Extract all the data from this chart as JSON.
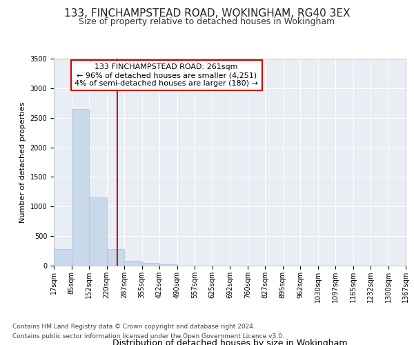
{
  "title1": "133, FINCHAMPSTEAD ROAD, WOKINGHAM, RG40 3EX",
  "title2": "Size of property relative to detached houses in Wokingham",
  "xlabel": "Distribution of detached houses by size in Wokingham",
  "ylabel": "Number of detached properties",
  "footer1": "Contains HM Land Registry data © Crown copyright and database right 2024.",
  "footer2": "Contains public sector information licensed under the Open Government Licence v3.0.",
  "annotation_line1": "133 FINCHAMPSTEAD ROAD: 261sqm",
  "annotation_line2": "← 96% of detached houses are smaller (4,251)",
  "annotation_line3": "4% of semi-detached houses are larger (180) →",
  "property_size": 261,
  "bar_color": "#c8d9ea",
  "bar_edge_color": "#a8c4d8",
  "ref_line_color": "#cc0000",
  "annotation_box_edge_color": "#cc0000",
  "bin_edges": [
    17,
    85,
    152,
    220,
    287,
    355,
    422,
    490,
    557,
    625,
    692,
    760,
    827,
    895,
    962,
    1030,
    1097,
    1165,
    1232,
    1300,
    1367
  ],
  "bin_labels": [
    "17sqm",
    "85sqm",
    "152sqm",
    "220sqm",
    "287sqm",
    "355sqm",
    "422sqm",
    "490sqm",
    "557sqm",
    "625sqm",
    "692sqm",
    "760sqm",
    "827sqm",
    "895sqm",
    "962sqm",
    "1030sqm",
    "1097sqm",
    "1165sqm",
    "1232sqm",
    "1300sqm",
    "1367sqm"
  ],
  "counts": [
    275,
    2650,
    1150,
    280,
    80,
    45,
    18,
    5,
    0,
    0,
    0,
    0,
    0,
    0,
    0,
    0,
    0,
    0,
    0,
    0
  ],
  "ylim": [
    0,
    3500
  ],
  "yticks": [
    0,
    500,
    1000,
    1500,
    2000,
    2500,
    3000,
    3500
  ],
  "background_color": "#e8eef4",
  "grid_color": "#ffffff",
  "title_fontsize": 11,
  "subtitle_fontsize": 9,
  "ylabel_fontsize": 8,
  "xlabel_fontsize": 9,
  "tick_fontsize": 7,
  "footer_fontsize": 6.5,
  "annot_fontsize": 8
}
